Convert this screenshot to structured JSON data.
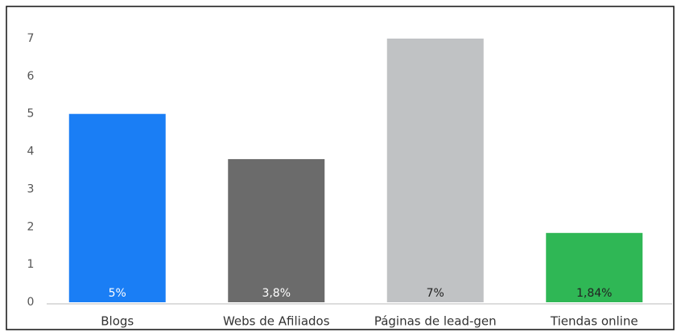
{
  "chart_data": {
    "type": "bar",
    "categories": [
      "Blogs",
      "Webs de Afiliados",
      "Páginas de lead-gen",
      "Tiendas online"
    ],
    "values": [
      5,
      3.8,
      7,
      1.84
    ],
    "value_labels": [
      "5%",
      "3,8%",
      "7%",
      "1,84%"
    ],
    "colors": [
      "#1a7ef5",
      "#6b6b6b",
      "#c0c2c4",
      "#2fb755"
    ],
    "ylim": [
      0,
      7
    ],
    "yticks": [
      0,
      1,
      2,
      3,
      4,
      5,
      6,
      7
    ],
    "grid": false
  }
}
